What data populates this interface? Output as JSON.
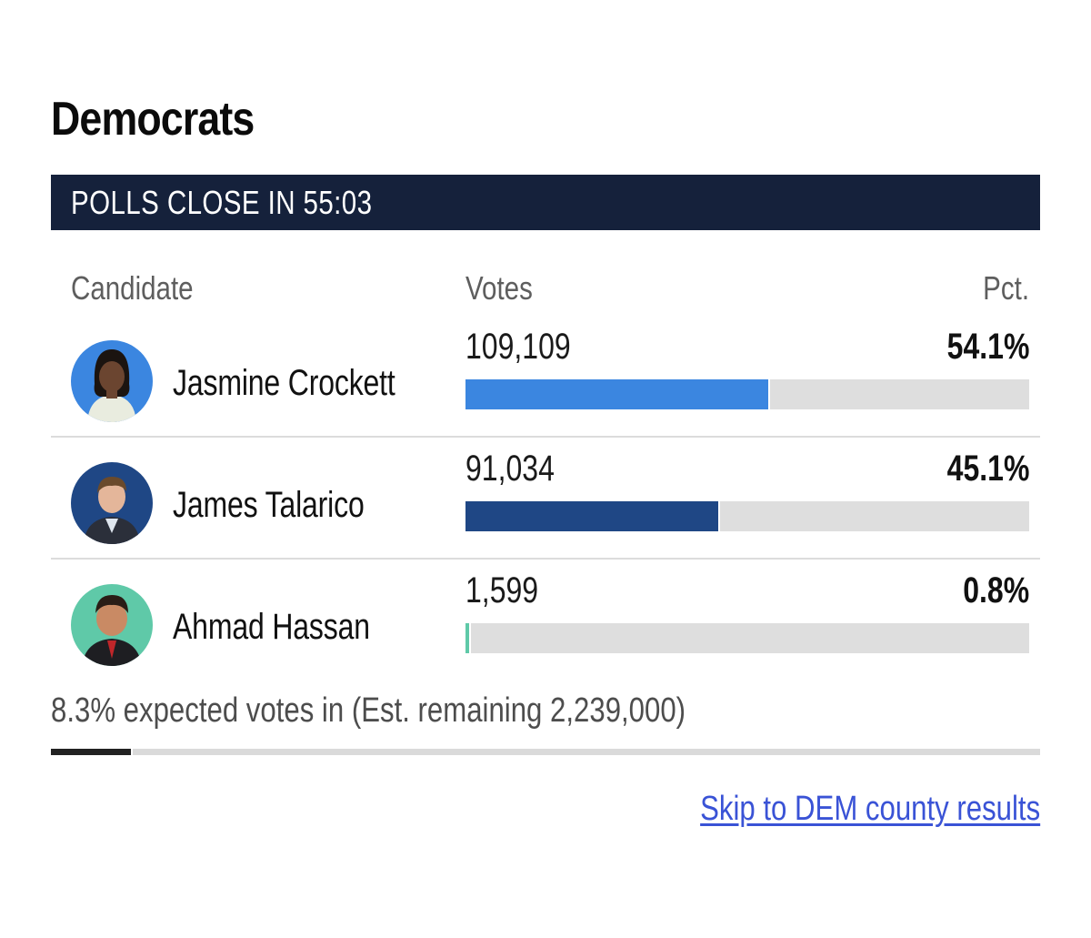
{
  "section": {
    "title": "Democrats"
  },
  "banner": {
    "text": "POLLS CLOSE IN 55:03"
  },
  "table": {
    "headers": {
      "candidate": "Candidate",
      "votes": "Votes",
      "pct": "Pct."
    },
    "rows": [
      {
        "name": "Jasmine Crockett",
        "votes": "109,109",
        "pct": "54.1%",
        "share": 54.1,
        "bar_color": "#3b86e0",
        "avatar_bg": "#3b86e0",
        "avatar_icon": "candidate-photo"
      },
      {
        "name": "James Talarico",
        "votes": "91,034",
        "pct": "45.1%",
        "share": 45.1,
        "bar_color": "#1f4785",
        "avatar_bg": "#1f4785",
        "avatar_icon": "candidate-photo"
      },
      {
        "name": "Ahmad Hassan",
        "votes": "1,599",
        "pct": "0.8%",
        "share": 0.8,
        "bar_color": "#5fc9a8",
        "avatar_bg": "#5fc9a8",
        "avatar_icon": "candidate-photo"
      }
    ]
  },
  "expected": {
    "text": "8.3% expected votes in (Est. remaining 2,239,000)",
    "share": 8.3
  },
  "link": {
    "text": "Skip to DEM county results"
  },
  "colors": {
    "banner_bg": "#15213b",
    "link": "#3a53d6",
    "track": "#dedede"
  }
}
